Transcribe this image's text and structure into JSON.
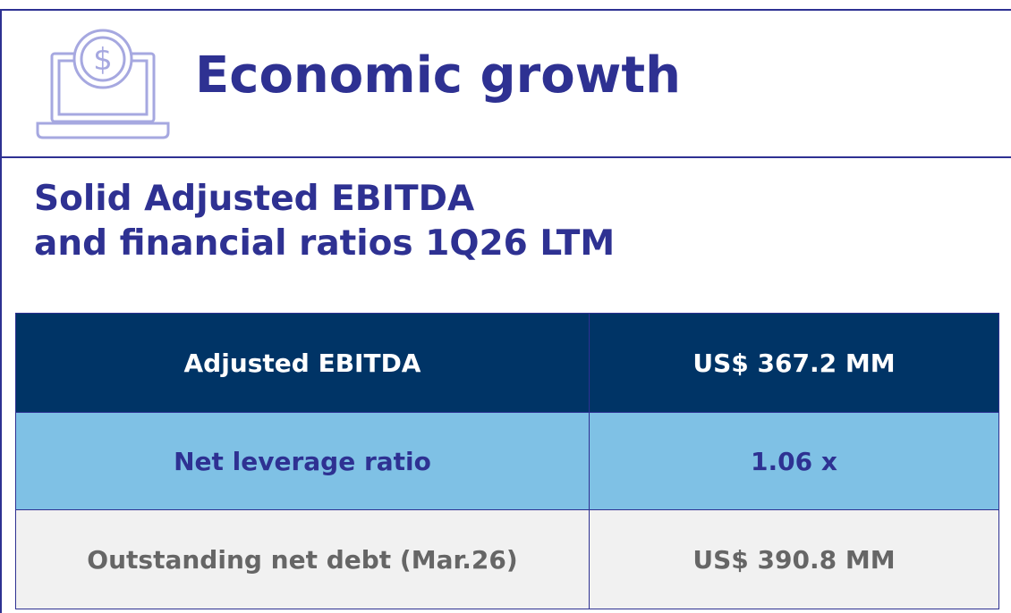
{
  "header": {
    "title": "Economic growth"
  },
  "subtitle": {
    "lines": [
      "Solid Adjusted EBITDA",
      "and financial ratios 1Q26 LTM"
    ]
  },
  "table": {
    "rows": [
      [
        "Adjusted EBITDA",
        "US$ 367.2 MM"
      ],
      [
        "Net leverage ratio",
        "1.06 x"
      ],
      [
        "Outstanding net debt (Mar.26)",
        "US$ 390.8 MM"
      ]
    ]
  }
}
